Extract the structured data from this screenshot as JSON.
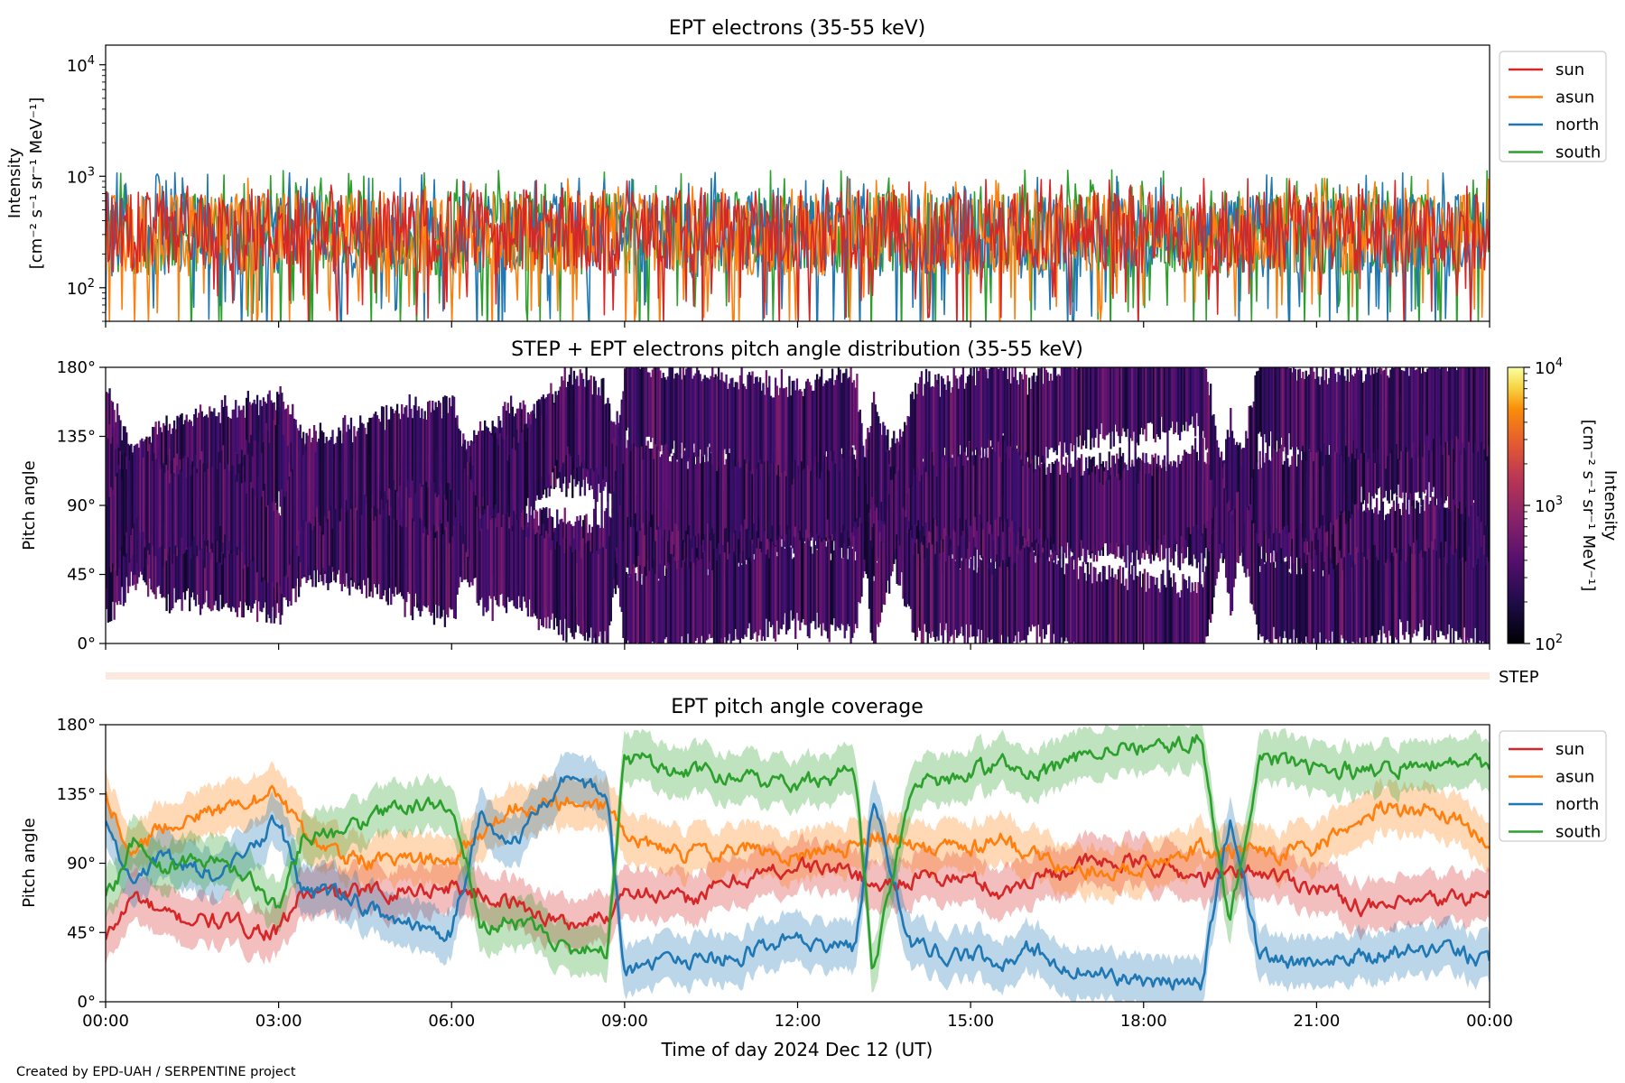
{
  "chart_data": [
    {
      "type": "line",
      "title": "EPT electrons (35-55 keV)",
      "ylabel_line1": "Intensity",
      "ylabel_line2": "[cm⁻² s⁻¹ sr⁻¹ MeV⁻¹]",
      "yscale": "log",
      "ylim": [
        50,
        15000
      ],
      "y_ticks": [
        {
          "value": 100,
          "base": "10",
          "exp": "2"
        },
        {
          "value": 1000,
          "base": "10",
          "exp": "3"
        },
        {
          "value": 10000,
          "base": "10",
          "exp": "4"
        }
      ],
      "xlim_hours": [
        0,
        24
      ],
      "legend_position": "outside-right-top",
      "series": [
        {
          "name": "sun",
          "color": "#d62728",
          "typical": 320,
          "low": 80,
          "high": 800
        },
        {
          "name": "asun",
          "color": "#ff7f0e",
          "typical": 300,
          "low": 70,
          "high": 800
        },
        {
          "name": "north",
          "color": "#1f77b4",
          "typical": 290,
          "low": 60,
          "high": 900
        },
        {
          "name": "south",
          "color": "#2ca02c",
          "typical": 310,
          "low": 60,
          "high": 950
        }
      ]
    },
    {
      "type": "heatmap",
      "title": "STEP + EPT electrons pitch angle distribution (35-55 keV)",
      "ylabel": "Pitch angle",
      "ylim": [
        0,
        180
      ],
      "y_ticks": [
        "0°",
        "45°",
        "90°",
        "135°",
        "180°"
      ],
      "colorbar": {
        "label_line1": "Intensity",
        "label_line2": "[cm⁻² s⁻¹ sr⁻¹ MeV⁻¹]",
        "scale": "log",
        "range": [
          100,
          10000
        ],
        "colormap": "inferno",
        "ticks": [
          {
            "value": 100,
            "base": "10",
            "exp": "2"
          },
          {
            "value": 1000,
            "base": "10",
            "exp": "3"
          },
          {
            "value": 10000,
            "base": "10",
            "exp": "4"
          }
        ]
      },
      "typical_intensity": 300
    },
    {
      "type": "bar",
      "label": "STEP",
      "color": "#fde8e0"
    },
    {
      "type": "area",
      "title": "EPT pitch angle coverage",
      "ylabel": "Pitch angle",
      "xlabel": "Time of day 2024 Dec 12 (UT)",
      "ylim": [
        0,
        180
      ],
      "y_ticks": [
        "0°",
        "45°",
        "90°",
        "135°",
        "180°"
      ],
      "x_ticks": [
        "00:00",
        "03:00",
        "06:00",
        "09:00",
        "12:00",
        "15:00",
        "18:00",
        "21:00",
        "00:00"
      ],
      "legend_position": "outside-right-top",
      "band_halfwidth_deg": 16,
      "series": [
        {
          "name": "sun",
          "color": "#d62728",
          "x_hours": [
            0,
            0.5,
            1,
            2,
            3,
            3.4,
            4,
            5,
            6,
            7,
            8,
            8.7,
            9,
            10,
            11,
            12,
            13,
            13.3,
            14,
            15,
            15.6,
            16,
            17,
            18,
            19,
            20,
            21,
            22,
            23,
            24
          ],
          "y_deg": [
            40,
            70,
            55,
            52,
            45,
            70,
            70,
            72,
            75,
            65,
            50,
            55,
            75,
            65,
            80,
            88,
            85,
            75,
            80,
            80,
            70,
            80,
            90,
            90,
            80,
            85,
            75,
            60,
            65,
            70
          ]
        },
        {
          "name": "asun",
          "color": "#ff7f0e",
          "x_hours": [
            0,
            0.5,
            1,
            2,
            3,
            3.4,
            4,
            5,
            6,
            7,
            8,
            8.7,
            9,
            10,
            11,
            12,
            13,
            13.3,
            14,
            15,
            15.6,
            16,
            17,
            18,
            19,
            20,
            21,
            22,
            23,
            24
          ],
          "y_deg": [
            135,
            95,
            115,
            125,
            135,
            110,
            95,
            90,
            95,
            125,
            130,
            125,
            110,
            95,
            100,
            95,
            100,
            110,
            100,
            100,
            105,
            95,
            85,
            85,
            100,
            95,
            100,
            125,
            125,
            105
          ]
        },
        {
          "name": "north",
          "color": "#1f77b4",
          "x_hours": [
            0,
            0.5,
            1,
            2,
            3,
            3.4,
            4,
            5,
            6,
            6.5,
            7,
            8,
            8.7,
            9,
            10,
            11,
            12,
            13,
            13.3,
            14,
            15,
            15.6,
            16,
            17,
            18,
            19,
            19.5,
            20,
            21,
            22,
            23,
            24
          ],
          "y_deg": [
            115,
            80,
            95,
            80,
            120,
            70,
            70,
            55,
            45,
            120,
            100,
            150,
            135,
            20,
            25,
            30,
            40,
            35,
            130,
            35,
            30,
            25,
            35,
            20,
            15,
            10,
            120,
            30,
            25,
            30,
            35,
            25
          ]
        },
        {
          "name": "south",
          "color": "#2ca02c",
          "x_hours": [
            0,
            0.5,
            1,
            2,
            3,
            3.4,
            4,
            5,
            6,
            6.5,
            7,
            8,
            8.7,
            9,
            10,
            11,
            12,
            13,
            13.3,
            14,
            15,
            15.6,
            16,
            17,
            18,
            19,
            19.5,
            20,
            21,
            22,
            23,
            24
          ],
          "y_deg": [
            65,
            105,
            85,
            95,
            60,
            105,
            110,
            125,
            130,
            50,
            55,
            35,
            30,
            160,
            150,
            145,
            140,
            150,
            20,
            140,
            150,
            155,
            145,
            160,
            165,
            170,
            50,
            160,
            150,
            150,
            155,
            155
          ]
        }
      ]
    }
  ],
  "x_tick_labels": [
    "00:00",
    "03:00",
    "06:00",
    "09:00",
    "12:00",
    "15:00",
    "18:00",
    "21:00",
    "00:00"
  ],
  "footer": "Created by EPD-UAH / SERPENTINE project"
}
